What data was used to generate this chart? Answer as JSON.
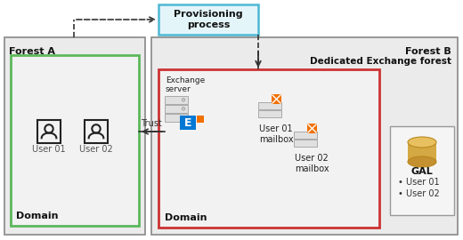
{
  "bg_color": "#ffffff",
  "forest_a_bg": "#e8e8e8",
  "forest_b_bg": "#e8e8e8",
  "domain_a_color": "#5cb85c",
  "domain_b_color": "#cc3333",
  "gal_box_color": "#888888",
  "provisioning_box_color": "#4db8d4",
  "title_forest_a": "Forest A",
  "title_forest_b": "Forest B",
  "subtitle_forest_b": "Dedicated Exchange forest",
  "domain_label": "Domain",
  "user01_label": "User 01",
  "user02_label": "User 02",
  "exchange_label": "Exchange\nserver",
  "mailbox01_label": "User 01\nmailbox",
  "mailbox02_label": "User 02\nmailbox",
  "gal_label": "GAL",
  "gal_items": [
    "User 01",
    "User 02"
  ],
  "provisioning_label": "Provisioning\nprocess",
  "trust_label": "Trust"
}
